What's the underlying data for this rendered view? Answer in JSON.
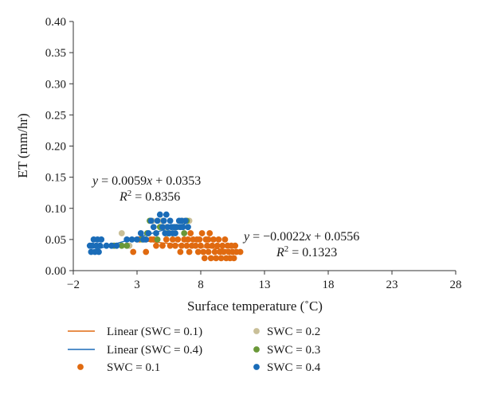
{
  "chart_data": {
    "type": "scatter",
    "xlabel": "Surface temperature (˚C)",
    "ylabel": "ET (mm/hr)",
    "xlim": [
      -2,
      28
    ],
    "ylim": [
      0,
      0.4
    ],
    "xticks": [
      "−2",
      "3",
      "8",
      "13",
      "18",
      "23",
      "28"
    ],
    "yticks": [
      "0.00",
      "0.05",
      "0.10",
      "0.15",
      "0.20",
      "0.25",
      "0.30",
      "0.35",
      "0.40"
    ],
    "grid": false,
    "legend_position": "bottom",
    "series": [
      {
        "name": "SWC = 0.1",
        "color": "#e06a10",
        "points": [
          [
            2.7,
            0.03
          ],
          [
            3.2,
            0.05
          ],
          [
            3.7,
            0.03
          ],
          [
            4.1,
            0.05
          ],
          [
            4.3,
            0.05
          ],
          [
            4.5,
            0.04
          ],
          [
            5.0,
            0.04
          ],
          [
            5.3,
            0.05
          ],
          [
            5.6,
            0.04
          ],
          [
            5.8,
            0.05
          ],
          [
            6.0,
            0.04
          ],
          [
            6.2,
            0.05
          ],
          [
            6.4,
            0.03
          ],
          [
            6.5,
            0.04
          ],
          [
            6.7,
            0.05
          ],
          [
            6.9,
            0.04
          ],
          [
            7.0,
            0.05
          ],
          [
            7.1,
            0.03
          ],
          [
            7.3,
            0.04
          ],
          [
            7.4,
            0.05
          ],
          [
            7.6,
            0.04
          ],
          [
            7.8,
            0.03
          ],
          [
            7.9,
            0.05
          ],
          [
            8.0,
            0.04
          ],
          [
            8.1,
            0.06
          ],
          [
            8.2,
            0.03
          ],
          [
            8.3,
            0.02
          ],
          [
            8.4,
            0.05
          ],
          [
            8.5,
            0.04
          ],
          [
            8.6,
            0.03
          ],
          [
            8.7,
            0.06
          ],
          [
            8.8,
            0.02
          ],
          [
            8.9,
            0.04
          ],
          [
            9.0,
            0.05
          ],
          [
            9.1,
            0.03
          ],
          [
            9.2,
            0.02
          ],
          [
            9.3,
            0.04
          ],
          [
            9.4,
            0.05
          ],
          [
            9.5,
            0.03
          ],
          [
            9.6,
            0.02
          ],
          [
            9.7,
            0.04
          ],
          [
            9.8,
            0.03
          ],
          [
            9.9,
            0.05
          ],
          [
            10.0,
            0.02
          ],
          [
            10.1,
            0.04
          ],
          [
            10.2,
            0.03
          ],
          [
            10.3,
            0.02
          ],
          [
            10.4,
            0.04
          ],
          [
            10.5,
            0.03
          ],
          [
            10.6,
            0.02
          ],
          [
            10.7,
            0.04
          ],
          [
            10.8,
            0.03
          ],
          [
            11.1,
            0.03
          ],
          [
            7.2,
            0.06
          ],
          [
            7.7,
            0.05
          ],
          [
            8.6,
            0.05
          ]
        ]
      },
      {
        "name": "SWC = 0.2",
        "color": "#c9bf98",
        "points": [
          [
            1.8,
            0.06
          ],
          [
            2.4,
            0.04
          ],
          [
            3.0,
            0.05
          ],
          [
            4.2,
            0.08
          ],
          [
            4.5,
            0.06
          ],
          [
            5.0,
            0.08
          ],
          [
            5.6,
            0.06
          ],
          [
            6.2,
            0.07
          ],
          [
            6.6,
            0.08
          ],
          [
            7.1,
            0.08
          ],
          [
            3.6,
            0.05
          ],
          [
            5.3,
            0.07
          ]
        ]
      },
      {
        "name": "SWC = 0.3",
        "color": "#6a9838",
        "points": [
          [
            1.2,
            0.04
          ],
          [
            1.8,
            0.04
          ],
          [
            2.2,
            0.04
          ],
          [
            3.4,
            0.05
          ],
          [
            3.8,
            0.06
          ],
          [
            4.0,
            0.08
          ],
          [
            4.8,
            0.07
          ],
          [
            5.4,
            0.06
          ],
          [
            6.0,
            0.07
          ],
          [
            6.7,
            0.06
          ],
          [
            6.9,
            0.08
          ],
          [
            4.6,
            0.05
          ]
        ]
      },
      {
        "name": "SWC = 0.4",
        "color": "#1a6cb8",
        "points": [
          [
            -0.7,
            0.04
          ],
          [
            -0.6,
            0.03
          ],
          [
            -0.5,
            0.04
          ],
          [
            -0.4,
            0.05
          ],
          [
            -0.3,
            0.03
          ],
          [
            -0.2,
            0.04
          ],
          [
            -0.1,
            0.05
          ],
          [
            0.0,
            0.03
          ],
          [
            0.1,
            0.04
          ],
          [
            0.2,
            0.05
          ],
          [
            0.6,
            0.04
          ],
          [
            1.0,
            0.04
          ],
          [
            1.4,
            0.04
          ],
          [
            2.2,
            0.05
          ],
          [
            2.6,
            0.05
          ],
          [
            3.0,
            0.05
          ],
          [
            3.3,
            0.06
          ],
          [
            3.5,
            0.05
          ],
          [
            3.7,
            0.05
          ],
          [
            3.9,
            0.06
          ],
          [
            4.1,
            0.08
          ],
          [
            4.3,
            0.07
          ],
          [
            4.5,
            0.06
          ],
          [
            4.6,
            0.08
          ],
          [
            4.8,
            0.09
          ],
          [
            5.0,
            0.07
          ],
          [
            5.1,
            0.08
          ],
          [
            5.2,
            0.06
          ],
          [
            5.3,
            0.09
          ],
          [
            5.4,
            0.07
          ],
          [
            5.5,
            0.06
          ],
          [
            5.6,
            0.08
          ],
          [
            5.7,
            0.07
          ],
          [
            5.8,
            0.06
          ],
          [
            5.9,
            0.07
          ],
          [
            6.0,
            0.06
          ],
          [
            6.1,
            0.07
          ],
          [
            6.3,
            0.08
          ],
          [
            6.4,
            0.07
          ],
          [
            6.5,
            0.08
          ],
          [
            6.6,
            0.07
          ],
          [
            6.8,
            0.08
          ],
          [
            7.0,
            0.07
          ]
        ]
      }
    ],
    "trendlines": [
      {
        "name": "Linear (SWC = 0.1)",
        "color": "#e06a10",
        "slope": -0.0022,
        "intercept": 0.0556,
        "x_range": [
          3.0,
          11.0
        ]
      },
      {
        "name": "Linear (SWC = 0.4)",
        "color": "#1a6cb8",
        "slope": 0.0059,
        "intercept": 0.0353,
        "x_range": [
          -0.5,
          7.0
        ]
      }
    ],
    "annotations": {
      "eq_04": "y = 0.0059x + 0.0353",
      "r2_04": "R2 = 0.8356",
      "eq_01": "y = −0.0022x + 0.0556",
      "r2_01": "R2 = 0.1323"
    },
    "legend": {
      "linear_01": "Linear (SWC = 0.1)",
      "linear_04": "Linear (SWC = 0.4)",
      "swc_01": "SWC = 0.1",
      "swc_02": "SWC = 0.2",
      "swc_03": "SWC = 0.3",
      "swc_04": "SWC = 0.4"
    }
  }
}
